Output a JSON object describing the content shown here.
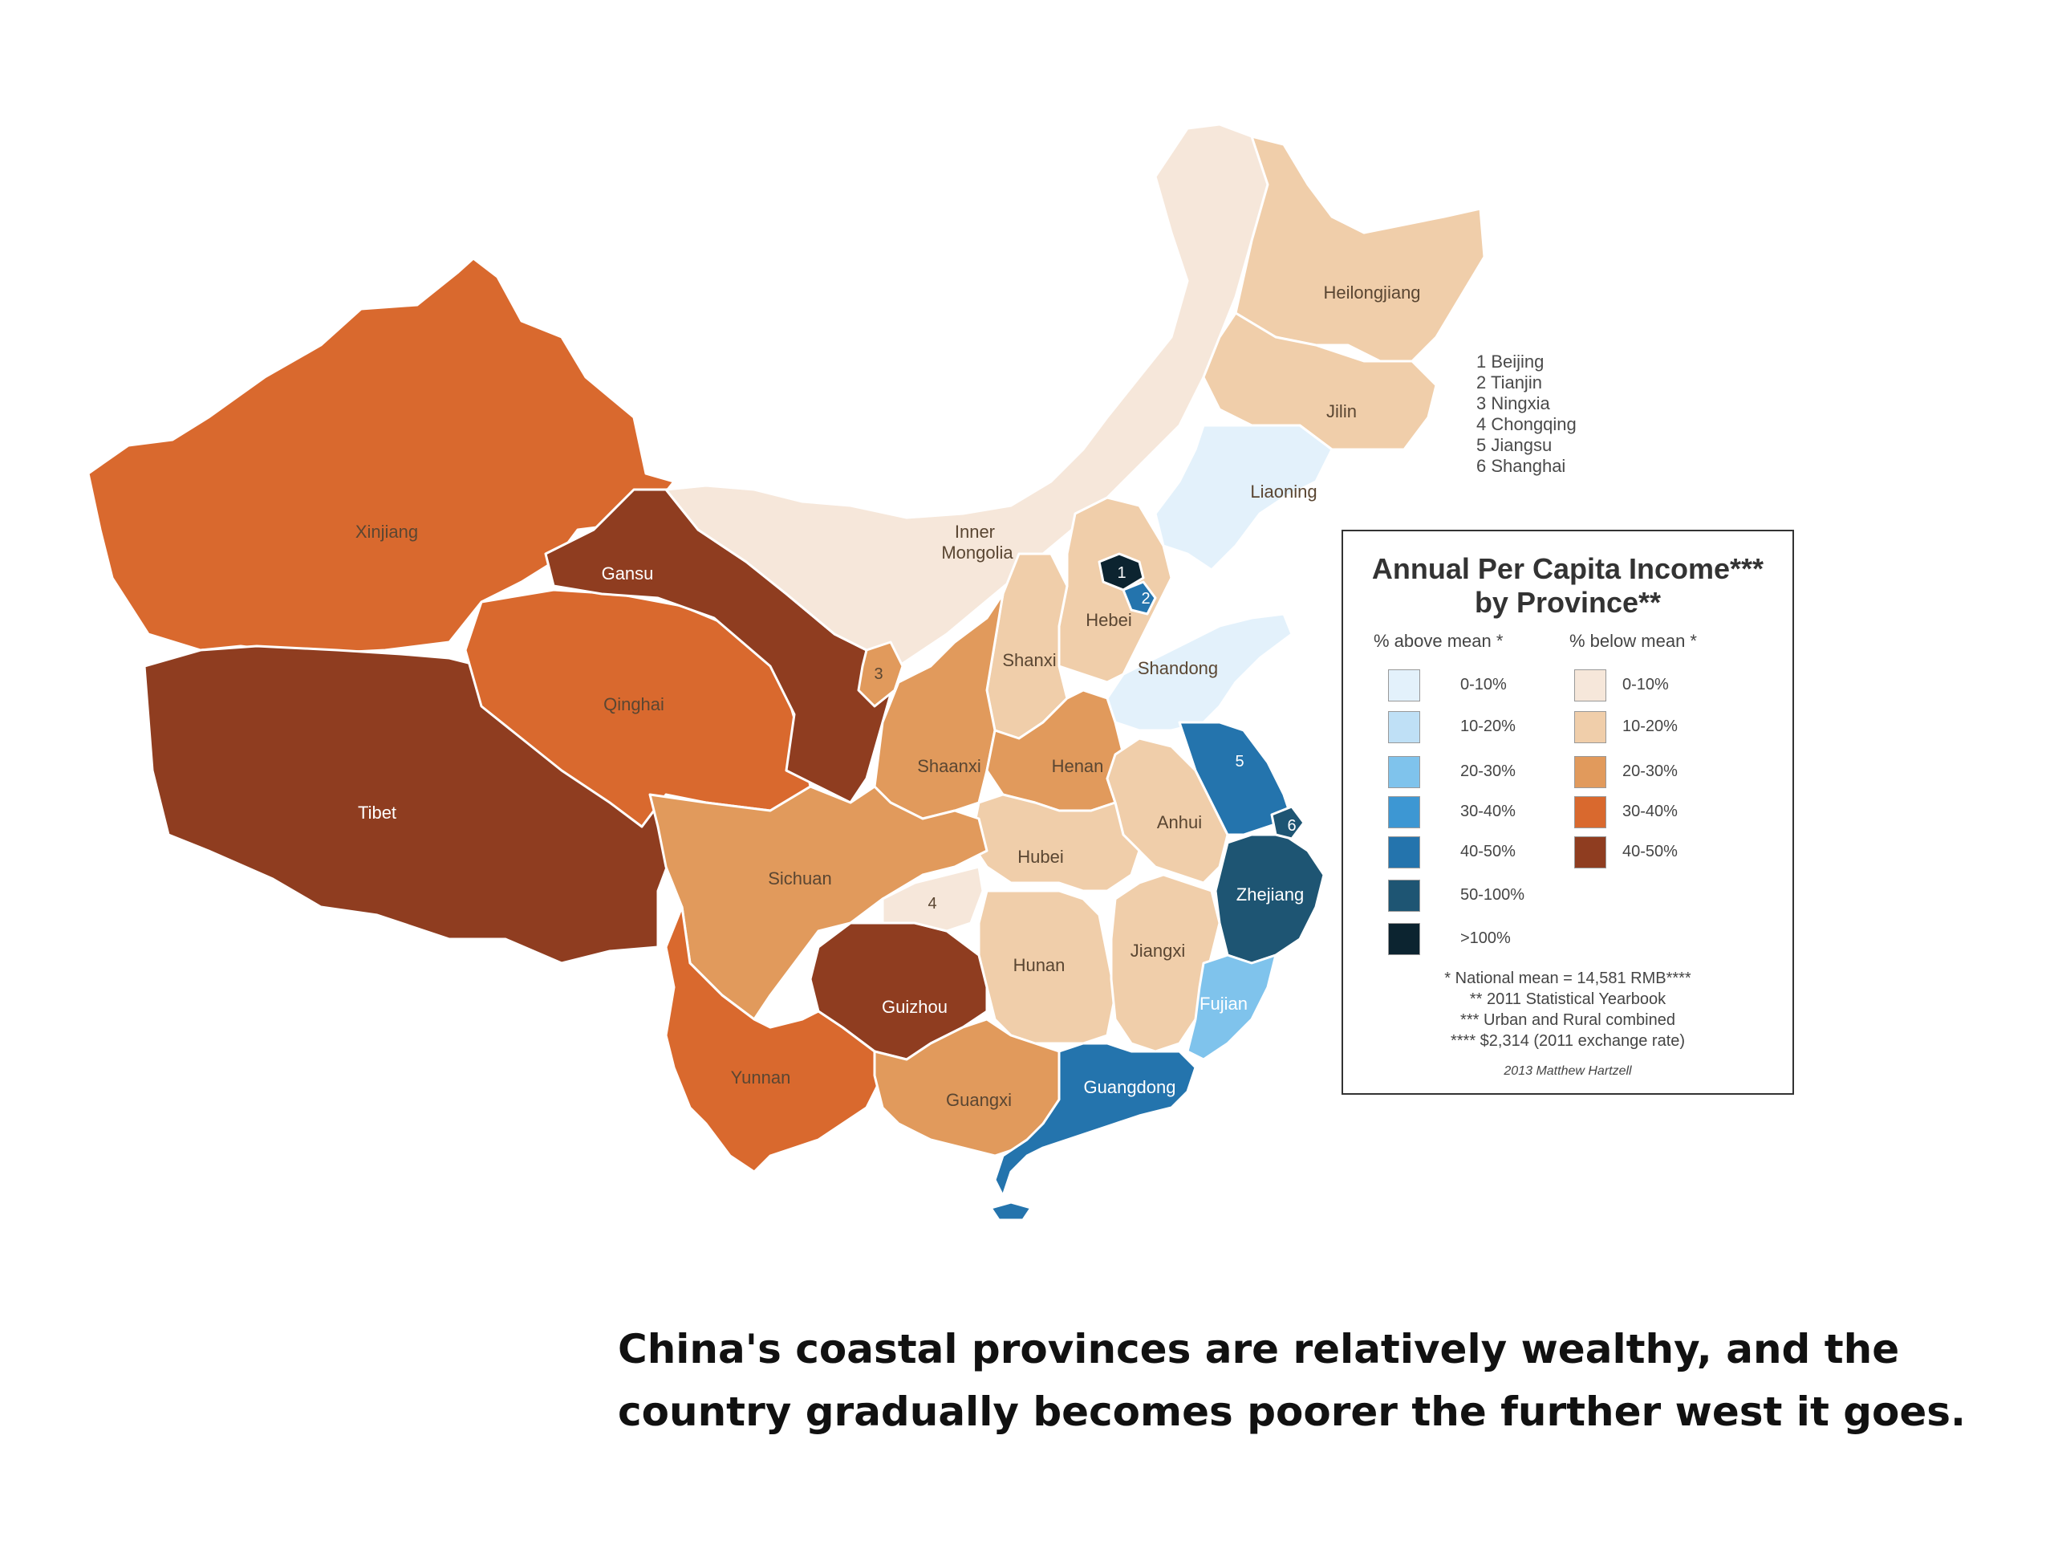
{
  "map": {
    "provinces": [
      {
        "name": "Xinjiang",
        "label": "Xinjiang",
        "category": "below_30_40"
      },
      {
        "name": "Tibet",
        "label": "Tibet",
        "category": "below_40_50"
      },
      {
        "name": "Qinghai",
        "label": "Qinghai",
        "category": "below_30_40"
      },
      {
        "name": "Gansu",
        "label": "Gansu",
        "category": "below_40_50"
      },
      {
        "name": "Inner Mongolia",
        "label": "Inner Mongolia",
        "category": "below_0_10"
      },
      {
        "name": "Heilongjiang",
        "label": "Heilongjiang",
        "category": "below_10_20"
      },
      {
        "name": "Jilin",
        "label": "Jilin",
        "category": "below_10_20"
      },
      {
        "name": "Liaoning",
        "label": "Liaoning",
        "category": "above_0_10"
      },
      {
        "name": "Hebei",
        "label": "Hebei",
        "category": "below_10_20"
      },
      {
        "name": "Shanxi",
        "label": "Shanxi",
        "category": "below_10_20"
      },
      {
        "name": "Shandong",
        "label": "Shandong",
        "category": "above_0_10"
      },
      {
        "name": "Shaanxi",
        "label": "Shaanxi",
        "category": "below_20_30"
      },
      {
        "name": "Henan",
        "label": "Henan",
        "category": "below_20_30"
      },
      {
        "name": "Anhui",
        "label": "Anhui",
        "category": "below_10_20"
      },
      {
        "name": "Hubei",
        "label": "Hubei",
        "category": "below_10_20"
      },
      {
        "name": "Sichuan",
        "label": "Sichuan",
        "category": "below_20_30"
      },
      {
        "name": "Hunan",
        "label": "Hunan",
        "category": "below_10_20"
      },
      {
        "name": "Jiangxi",
        "label": "Jiangxi",
        "category": "below_10_20"
      },
      {
        "name": "Zhejiang",
        "label": "Zhejiang",
        "category": "above_50_100"
      },
      {
        "name": "Fujian",
        "label": "Fujian",
        "category": "above_20_30"
      },
      {
        "name": "Guizhou",
        "label": "Guizhou",
        "category": "below_40_50"
      },
      {
        "name": "Yunnan",
        "label": "Yunnan",
        "category": "below_30_40"
      },
      {
        "name": "Guangxi",
        "label": "Guangxi",
        "category": "below_20_30"
      },
      {
        "name": "Guangdong",
        "label": "Guangdong",
        "category": "above_40_50"
      },
      {
        "name": "Beijing",
        "label": "1",
        "category": "above_over_100"
      },
      {
        "name": "Tianjin",
        "label": "2",
        "category": "above_40_50"
      },
      {
        "name": "Ningxia",
        "label": "3",
        "category": "below_20_30"
      },
      {
        "name": "Chongqing",
        "label": "4",
        "category": "below_0_10"
      },
      {
        "name": "Jiangsu",
        "label": "5",
        "category": "above_40_50"
      },
      {
        "name": "Shanghai",
        "label": "6",
        "category": "above_50_100"
      }
    ],
    "key_list": [
      "1 Beijing",
      "2 Tianjin",
      "3 Ningxia",
      "4 Chongqing",
      "5 Jiangsu",
      "6 Shanghai"
    ]
  },
  "legend": {
    "title_line1": "Annual Per Capita Income***",
    "title_line2": "by Province**",
    "above_header": "% above mean *",
    "below_header": "% below mean *",
    "above": [
      {
        "range": "0-10%",
        "color": "#e3f1fb"
      },
      {
        "range": "10-20%",
        "color": "#bfe0f6"
      },
      {
        "range": "20-30%",
        "color": "#7fc3ec"
      },
      {
        "range": "30-40%",
        "color": "#3d97d3"
      },
      {
        "range": "40-50%",
        "color": "#2474ad"
      },
      {
        "range": "50-100%",
        "color": "#1e5573"
      },
      {
        "range": ">100%",
        "color": "#0c2430"
      }
    ],
    "below": [
      {
        "range": "0-10%",
        "color": "#f6e7da"
      },
      {
        "range": "10-20%",
        "color": "#f0ceaa"
      },
      {
        "range": "20-30%",
        "color": "#e19a5c"
      },
      {
        "range": "30-40%",
        "color": "#d9692e"
      },
      {
        "range": "40-50%",
        "color": "#8f3d20"
      }
    ],
    "notes": [
      "* National mean = 14,581 RMB****",
      "** 2011 Statistical Yearbook",
      "*** Urban and Rural combined",
      "**** $2,314 (2011 exchange rate)"
    ],
    "credit": "2013 Matthew Hartzell"
  },
  "caption": {
    "line1": "China's coastal provinces are relatively wealthy, and the",
    "line2": "country gradually becomes poorer the further west it goes."
  },
  "colors": {
    "above_0_10": "#e3f1fb",
    "above_10_20": "#bfe0f6",
    "above_20_30": "#7fc3ec",
    "above_30_40": "#3d97d3",
    "above_40_50": "#2474ad",
    "above_50_100": "#1e5573",
    "above_over_100": "#0c2430",
    "below_0_10": "#f6e7da",
    "below_10_20": "#f0ceaa",
    "below_20_30": "#e19a5c",
    "below_30_40": "#d9692e",
    "below_40_50": "#8f3d20"
  }
}
